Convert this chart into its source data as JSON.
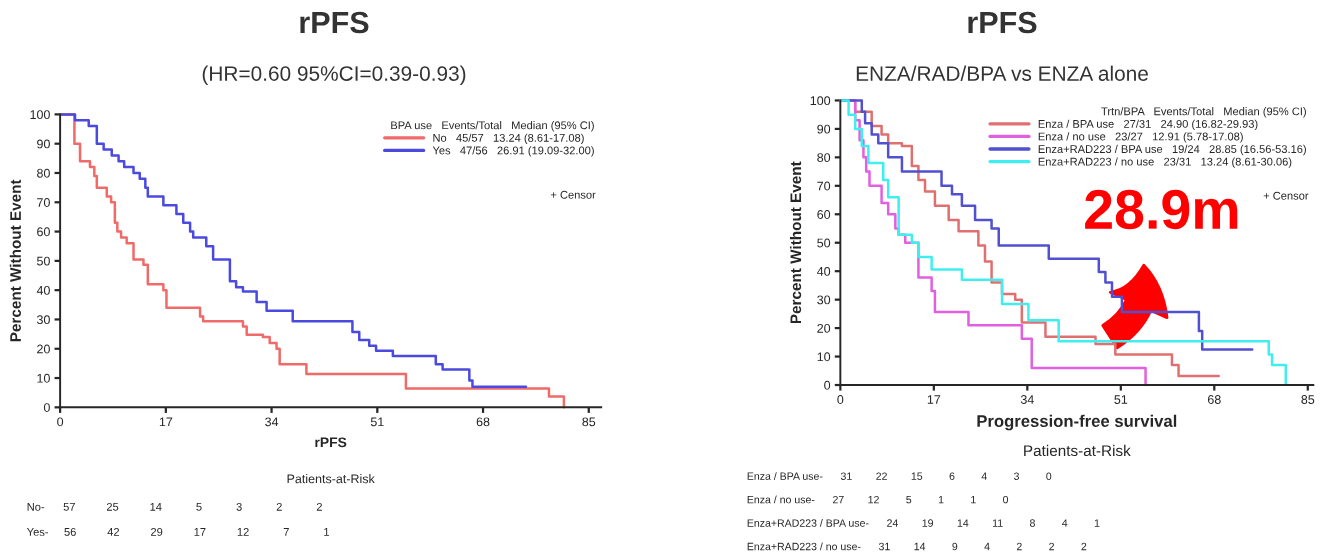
{
  "chart_data": [
    {
      "type": "step",
      "title": "rPFS",
      "subtitle": "(HR=0.60 95%CI=0.39-0.93)",
      "xlabel": "rPFS",
      "ylabel": "Percent Without Event",
      "legend_title": "BPA use   Events/Total   Median (95% CI)",
      "xlim": [
        0,
        87
      ],
      "ylim": [
        0,
        100
      ],
      "xticks": [
        0,
        17,
        34,
        51,
        68,
        85
      ],
      "yticks": [
        0,
        10,
        20,
        30,
        40,
        50,
        60,
        70,
        80,
        90,
        100
      ],
      "grid": false,
      "legend": "top right",
      "series": [
        {
          "name": "No   45/57   13.24 (8.61-17.08)",
          "color": "#f06a6a",
          "x": [
            0,
            2.3,
            3.2,
            4.8,
            5.5,
            5.9,
            7.5,
            8.2,
            8.8,
            9.2,
            9.8,
            10.7,
            11.8,
            13.4,
            14.1,
            16.6,
            17.1,
            22.5,
            23,
            29.4,
            30,
            32.6,
            33.7,
            34.8,
            35.3,
            39.6,
            55.6,
            78.6,
            81
          ],
          "values": [
            100,
            90,
            84,
            82,
            79,
            75,
            72,
            70,
            63,
            60,
            58,
            56,
            50.5,
            48.7,
            42,
            40,
            34,
            31,
            29.4,
            27.6,
            24.8,
            24,
            22,
            20,
            14.7,
            11.4,
            6.4,
            3.7,
            0
          ]
        },
        {
          "name": "Yes   47/56   26.91 (19.09-32.00)",
          "color": "#4a4ae0",
          "x": [
            0,
            2.4,
            4.6,
            5.9,
            7,
            8.3,
            9.4,
            10.3,
            11.8,
            12.8,
            13.7,
            14.1,
            16.6,
            18.7,
            19.8,
            20.9,
            21.4,
            23.5,
            24.6,
            27.3,
            28.3,
            29.4,
            31.6,
            33.2,
            37.4,
            47,
            48.1,
            49.7,
            50.8,
            53.5,
            60.4,
            61.5,
            65.8,
            66.3,
            74.9
          ],
          "values": [
            100,
            98,
            96,
            90,
            88,
            86,
            84,
            82,
            80,
            78,
            75,
            72,
            69,
            66,
            63,
            60,
            58,
            55,
            50.5,
            43,
            41,
            39.5,
            36,
            33,
            29.4,
            25.7,
            23,
            21,
            19.3,
            17.5,
            14.7,
            12.9,
            9.2,
            7,
            7
          ]
        }
      ],
      "annotations": [
        "+ Censor",
        "Patients-at-Risk",
        "No-      57          25          14           5           3           2           2",
        "Yes-     56          42          29          17          12           7           1"
      ]
    },
    {
      "type": "step",
      "title": "rPFS",
      "subtitle": "ENZA/RAD/BPA vs ENZA alone",
      "xlabel": "Progression-free survival",
      "ylabel": "Percent Without Event",
      "legend_title": "Trtn/BPA   Events/Total   Median (95% CI)",
      "xlim": [
        0,
        86
      ],
      "ylim": [
        0,
        100
      ],
      "xticks": [
        0,
        17,
        34,
        51,
        68,
        85
      ],
      "yticks": [
        0,
        10,
        20,
        30,
        40,
        50,
        60,
        70,
        80,
        90,
        100
      ],
      "grid": false,
      "legend": "top right",
      "series": [
        {
          "name": "Enza / BPA use   27/31   24.90 (16.82-29.93)",
          "color": "#e07070",
          "x": [
            0,
            2.7,
            5.7,
            7.5,
            8.7,
            11.2,
            13,
            14.2,
            15.4,
            17.2,
            19.7,
            21.5,
            25.1,
            26.3,
            27.5,
            29.4,
            31.8,
            33,
            37.3,
            46.4,
            50,
            60.3,
            61.5,
            68.8
          ],
          "values": [
            100,
            96,
            91,
            88,
            85,
            84,
            77,
            72,
            68,
            63,
            58,
            54,
            49,
            43.4,
            36,
            32,
            30,
            22,
            17,
            14.4,
            10.7,
            7,
            3.2,
            3.2
          ]
        },
        {
          "name": "Enza / no use   23/27   12.91 (5.78-17.08)",
          "color": "#e060e0",
          "x": [
            0,
            2.7,
            3.5,
            4.2,
            4.7,
            5.3,
            7.5,
            8.7,
            10,
            10.6,
            11.8,
            14.2,
            16.6,
            17.2,
            23.3,
            33,
            34.8,
            55.5
          ],
          "values": [
            100,
            93,
            86,
            80,
            75,
            70,
            64,
            60,
            55,
            52.8,
            50,
            37.8,
            33,
            25.7,
            21,
            16.3,
            6,
            0
          ]
        },
        {
          "name": "Enza+RAD223 / BPA use   19/24   28.85 (16.56-53.16)",
          "color": "#5050d0",
          "x": [
            0,
            3.9,
            4.5,
            5.7,
            6.9,
            8.7,
            11.2,
            14.2,
            18.4,
            20.3,
            22.1,
            24.5,
            27.5,
            28.8,
            37.9,
            47,
            48.2,
            49.4,
            51.2,
            65.2,
            65.8,
            74.9
          ],
          "values": [
            100,
            96,
            92,
            88,
            85,
            80,
            75,
            75,
            70,
            67,
            63,
            58,
            55,
            49,
            44.4,
            39.7,
            36,
            31,
            25.7,
            19,
            12.5,
            12.5
          ]
        },
        {
          "name": "Enza+RAD223 / no use   23/31   13.24 (8.61-30.06)",
          "color": "#40eef0",
          "x": [
            0,
            1.5,
            2.7,
            3.9,
            5.1,
            7.8,
            8.7,
            10.6,
            13,
            14.2,
            16.6,
            22.1,
            29.4,
            34.2,
            39.7,
            77.9,
            78.5,
            81
          ],
          "values": [
            100,
            95,
            90,
            84,
            78,
            72,
            66,
            52.8,
            50,
            45,
            40.6,
            37,
            28.5,
            22.8,
            15.4,
            10.7,
            7,
            0
          ]
        }
      ],
      "annotations": [
        "+ Censor",
        "Patients-at-Risk",
        "Enza / BPA use-      31        22        15         6         4         3         0",
        "Enza / no use-      27        12         5         1         1         0",
        "Enza+RAD223 / BPA use-      24        19        14        11         8         4         1",
        "Enza+RAD223 / no use-      31        14         9         4         2         2         2",
        "28.9m"
      ]
    }
  ]
}
